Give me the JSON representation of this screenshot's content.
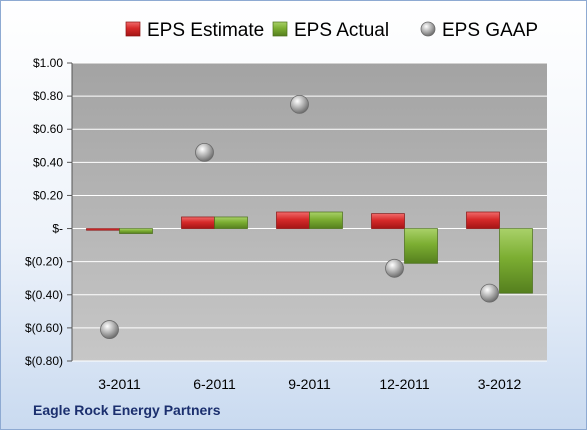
{
  "chart_data": {
    "type": "bar",
    "categories": [
      "3-2011",
      "6-2011",
      "9-2011",
      "12-2011",
      "3-2012"
    ],
    "series": [
      {
        "name": "EPS Estimate",
        "type": "bar",
        "color": "#d62a2a",
        "values": [
          -0.01,
          0.07,
          0.1,
          0.09,
          0.1
        ]
      },
      {
        "name": "EPS Actual",
        "type": "bar",
        "color": "#74a72b",
        "values": [
          -0.03,
          0.07,
          0.1,
          -0.21,
          -0.39
        ]
      },
      {
        "name": "EPS GAAP",
        "type": "scatter",
        "color": "#a8a8a8",
        "values": [
          -0.61,
          0.46,
          0.75,
          -0.24,
          -0.39
        ]
      }
    ],
    "ylim": [
      -0.8,
      1.0
    ],
    "yticks": [
      1.0,
      0.8,
      0.6,
      0.4,
      0.2,
      0.0,
      -0.2,
      -0.4,
      -0.6,
      -0.8
    ],
    "ytick_labels": [
      "$1.00",
      "$0.80",
      "$0.60",
      "$0.40",
      "$0.20",
      "$-",
      "$(0.20)",
      "$(0.40)",
      "$(0.60)",
      "$(0.80)"
    ],
    "legend": "top",
    "grid": true
  },
  "footer": {
    "company": "Eagle Rock Energy Partners"
  }
}
